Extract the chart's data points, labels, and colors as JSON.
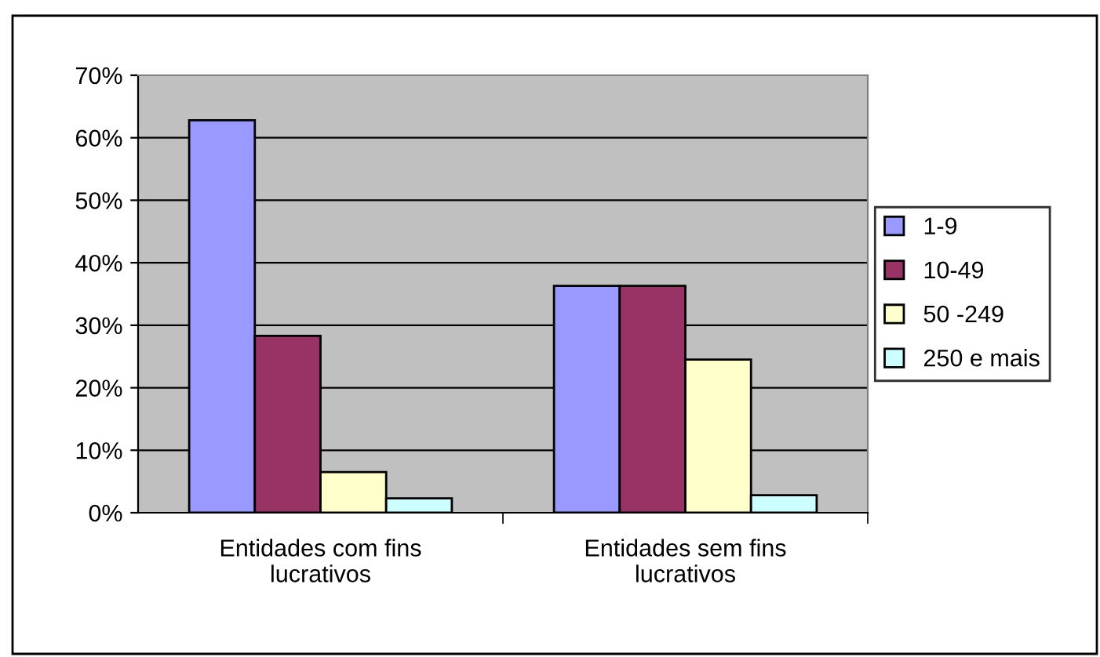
{
  "chart_data": {
    "type": "bar",
    "categories": [
      "Entidades com fins\nlucrativos",
      "Entidades sem fins\nlucrativos"
    ],
    "series": [
      {
        "name": "1-9",
        "color": "#9999ff",
        "values": [
          62.8,
          36.3
        ]
      },
      {
        "name": "10-49",
        "color": "#993366",
        "values": [
          28.3,
          36.3
        ]
      },
      {
        "name": "50 -249",
        "color": "#ffffcc",
        "values": [
          6.5,
          24.5
        ]
      },
      {
        "name": "250 e mais",
        "color": "#ccffff",
        "values": [
          2.3,
          2.8
        ]
      }
    ],
    "ylim": [
      0,
      70
    ],
    "yticks": [
      {
        "value": 0,
        "label": "0%"
      },
      {
        "value": 10,
        "label": "10%"
      },
      {
        "value": 20,
        "label": "20%"
      },
      {
        "value": 30,
        "label": "30%"
      },
      {
        "value": 40,
        "label": "40%"
      },
      {
        "value": 50,
        "label": "50%"
      },
      {
        "value": 60,
        "label": "60%"
      },
      {
        "value": 70,
        "label": "70%"
      }
    ],
    "grid": "y",
    "legend": "right"
  }
}
